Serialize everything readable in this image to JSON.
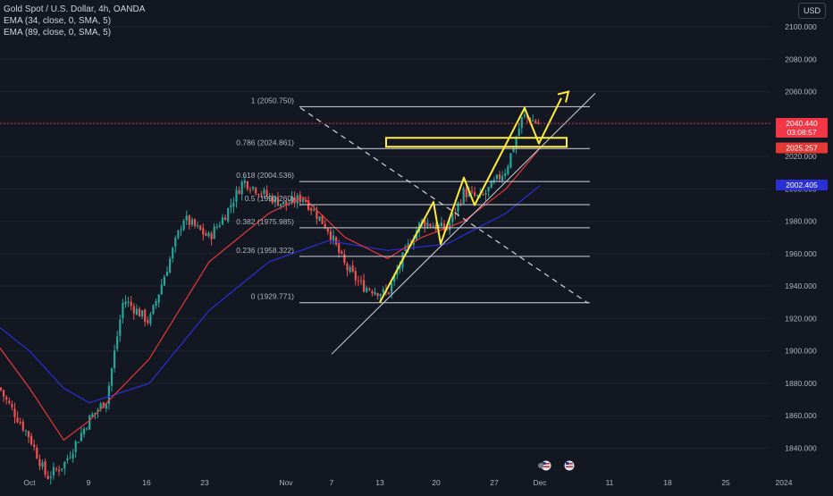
{
  "header": {
    "symbol_line": "Gold Spot / U.S. Dollar, 4h, OANDA",
    "indicators": [
      "EMA (34, close, 0, SMA, 5)",
      "EMA (89, close, 0, SMA, 5)"
    ],
    "currency": "USD"
  },
  "colors": {
    "background": "#131722",
    "bull": "#26a69a",
    "bear": "#ef5350",
    "ema34": "#e53935",
    "ema89": "#2a2fd6",
    "fib": "#d1d4dc",
    "drawing": "#ffeb3b",
    "price_line": "#f23645"
  },
  "chart_data": {
    "type": "candlestick",
    "y_axis": {
      "range": [
        1832,
        2110
      ],
      "ticks": [
        "2100.000",
        "2080.000",
        "2060.000",
        "2040.000",
        "2020.000",
        "2000.000",
        "1980.000",
        "1960.000",
        "1940.000",
        "1920.000",
        "1900.000",
        "1880.000",
        "1860.000",
        "1840.000"
      ]
    },
    "x_axis": {
      "labels": [
        "Oct",
        "9",
        "16",
        "23",
        "Nov",
        "7",
        "13",
        "20",
        "27",
        "Dec",
        "11",
        "18",
        "25",
        "2024"
      ]
    },
    "price_path": [
      [
        "Sep 26",
        1918
      ],
      [
        "Sep 27",
        1895
      ],
      [
        "Sep 29",
        1872
      ],
      [
        "Oct 2",
        1847
      ],
      [
        "Oct 4",
        1822
      ],
      [
        "Oct 6",
        1830
      ],
      [
        "Oct 9",
        1858
      ],
      [
        "Oct 11",
        1870
      ],
      [
        "Oct 13",
        1932
      ],
      [
        "Oct 16",
        1918
      ],
      [
        "Oct 18",
        1950
      ],
      [
        "Oct 20",
        1982
      ],
      [
        "Oct 23",
        1970
      ],
      [
        "Oct 25",
        1985
      ],
      [
        "Oct 27",
        2005
      ],
      [
        "Oct 30",
        1995
      ],
      [
        "Nov 1",
        1990
      ],
      [
        "Nov 3",
        1995
      ],
      [
        "Nov 6",
        1975
      ],
      [
        "Nov 8",
        1952
      ],
      [
        "Nov 10",
        1940
      ],
      [
        "Nov 13",
        1935
      ],
      [
        "Nov 15",
        1960
      ],
      [
        "Nov 17",
        1980
      ],
      [
        "Nov 20",
        1975
      ],
      [
        "Nov 22",
        1998
      ],
      [
        "Nov 24",
        1994
      ],
      [
        "Nov 27",
        2012
      ],
      [
        "Nov 29",
        2045
      ],
      [
        "Dec 1",
        2040
      ]
    ],
    "ema34": [
      [
        "Sep 26",
        1920
      ],
      [
        "Oct 2",
        1877
      ],
      [
        "Oct 6",
        1845
      ],
      [
        "Oct 9",
        1857
      ],
      [
        "Oct 16",
        1895
      ],
      [
        "Oct 23",
        1955
      ],
      [
        "Oct 30",
        1985
      ],
      [
        "Nov 3",
        1995
      ],
      [
        "Nov 8",
        1970
      ],
      [
        "Nov 13",
        1957
      ],
      [
        "Nov 17",
        1970
      ],
      [
        "Nov 22",
        1980
      ],
      [
        "Nov 27",
        2000
      ],
      [
        "Dec 1",
        2025
      ]
    ],
    "ema89": [
      [
        "Sep 26",
        1925
      ],
      [
        "Oct 2",
        1900
      ],
      [
        "Oct 6",
        1877
      ],
      [
        "Oct 9",
        1868
      ],
      [
        "Oct 16",
        1880
      ],
      [
        "Oct 23",
        1925
      ],
      [
        "Oct 30",
        1955
      ],
      [
        "Nov 6",
        1968
      ],
      [
        "Nov 13",
        1962
      ],
      [
        "Nov 20",
        1966
      ],
      [
        "Nov 27",
        1985
      ],
      [
        "Dec 1",
        2002
      ]
    ],
    "fibonacci": [
      {
        "ratio": "1",
        "price": "2050.750",
        "value": 2050.75
      },
      {
        "ratio": "0.786",
        "price": "2024.861",
        "value": 2024.861
      },
      {
        "ratio": "0.618",
        "price": "2004.536",
        "value": 2004.536
      },
      {
        "ratio": "0.5",
        "price": "1990.260",
        "value": 1990.26
      },
      {
        "ratio": "0.382",
        "price": "1975.985",
        "value": 1975.985
      },
      {
        "ratio": "0.236",
        "price": "1958.322",
        "value": 1958.322
      },
      {
        "ratio": "0",
        "price": "1929.771",
        "value": 1929.771
      }
    ],
    "price_labels": [
      {
        "text": "2040.440",
        "value": 2040.44,
        "sub": "03:08:57",
        "color": "#f23645"
      },
      {
        "text": "2025.257",
        "value": 2025.257,
        "color": "#e53935"
      },
      {
        "text": "2002.405",
        "value": 2002.405,
        "color": "#2a2fd6"
      }
    ]
  }
}
